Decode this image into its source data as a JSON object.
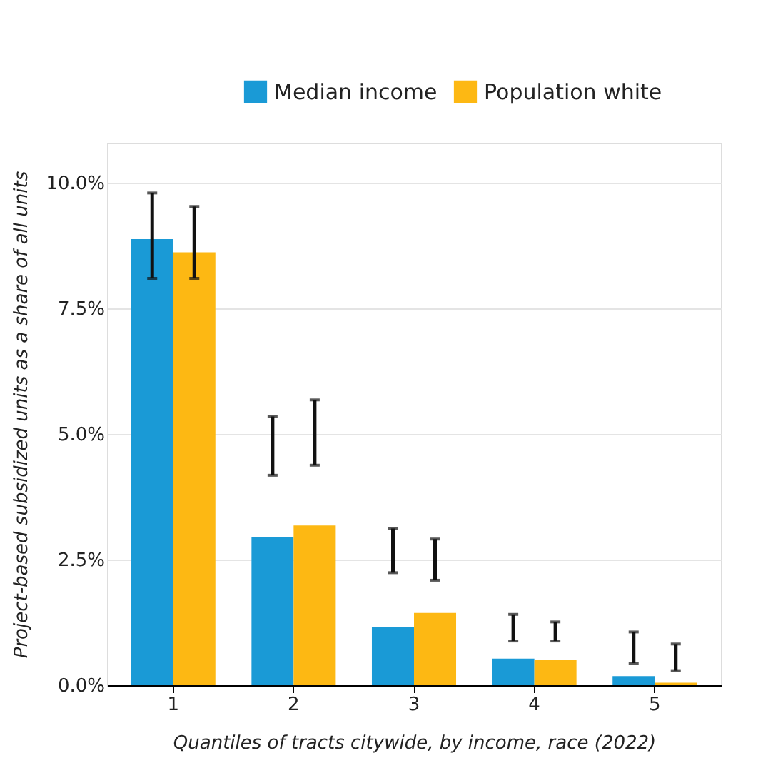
{
  "chart_data": {
    "type": "bar",
    "xlabel": "Quantiles of tracts citywide, by income, race (2022)",
    "ylabel": "Project-based subsidized units as a share of all units",
    "categories": [
      "1",
      "2",
      "3",
      "4",
      "5"
    ],
    "series": [
      {
        "name": "Median income",
        "color": "#1a9ad6",
        "values": [
          8.88,
          2.94,
          1.15,
          0.53,
          0.18
        ],
        "errors": [
          [
            8.1,
            9.8
          ],
          [
            4.18,
            5.35
          ],
          [
            2.24,
            3.12
          ],
          [
            0.88,
            1.41
          ],
          [
            0.44,
            1.06
          ]
        ]
      },
      {
        "name": "Population white",
        "color": "#fdb813",
        "values": [
          8.62,
          3.18,
          1.44,
          0.5,
          0.05
        ],
        "errors": [
          [
            8.1,
            9.53
          ],
          [
            4.38,
            5.68
          ],
          [
            2.09,
            2.91
          ],
          [
            0.88,
            1.26
          ],
          [
            0.29,
            0.82
          ]
        ]
      }
    ],
    "ylim": [
      0,
      10.8
    ],
    "yticks": [
      {
        "value": 0,
        "label": "0.0%"
      },
      {
        "value": 2.5,
        "label": "2.5%"
      },
      {
        "value": 5,
        "label": "5.0%"
      },
      {
        "value": 7.5,
        "label": "7.5%"
      },
      {
        "value": 10,
        "label": "10.0%"
      }
    ],
    "grid": "y",
    "legend": "top right"
  }
}
